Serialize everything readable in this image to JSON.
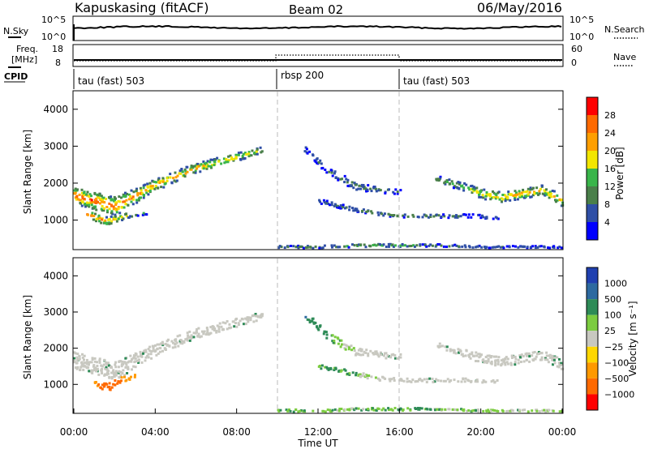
{
  "header": {
    "radar": "Kapuskasing (fitACF)",
    "beam": "Beam 02",
    "date": "06/May/2016"
  },
  "noise_panel": {
    "left_label": "N.Sky",
    "left_ticks": [
      "10^5",
      "10^0"
    ],
    "right_label": "N.Search",
    "right_ticks": [
      "10^5",
      "10^0"
    ]
  },
  "freq_panel": {
    "left_label_1": "Freq.",
    "left_label_2": "[MHz]",
    "left_ticks": [
      "18",
      "8"
    ],
    "right_label": "Nave",
    "right_ticks": [
      "60",
      "0"
    ]
  },
  "cpid_panel": {
    "label": "CPID",
    "segments": [
      {
        "start": 0,
        "end": 10,
        "name": "tau (fast) 503"
      },
      {
        "start": 10,
        "end": 16,
        "name": "rbsp 200"
      },
      {
        "start": 16,
        "end": 24,
        "name": "tau (fast) 503"
      }
    ]
  },
  "x_axis": {
    "label": "Time UT",
    "ticks": [
      "00:00",
      "04:00",
      "08:00",
      "12:00",
      "16:00",
      "20:00",
      "00:00"
    ]
  },
  "colors": {
    "power": [
      "#0000ff",
      "#2f4fa6",
      "#4a7f4a",
      "#39b54a",
      "#f2e600",
      "#ff9f00",
      "#ff6a00",
      "#ff0000"
    ],
    "velocity": [
      "#2040b0",
      "#2d6aa0",
      "#2e8b57",
      "#7ccc40",
      "#c8c8c0",
      "#ffd700",
      "#ff9900",
      "#ff6a00",
      "#ff0000"
    ],
    "ground_scatter": "#c8c8c0"
  },
  "chart_data": [
    {
      "type": "heatmap",
      "title": "Power",
      "ylabel": "Slant Range [km]",
      "xlim": [
        0,
        24
      ],
      "ylim": [
        200,
        4500
      ],
      "yticks": [
        "1000",
        "2000",
        "3000",
        "4000"
      ],
      "yvalues": [
        1000,
        2000,
        3000,
        4000
      ],
      "colorbar": {
        "label": "Power [dB]",
        "ticks": [
          "4",
          "8",
          "12",
          "16",
          "20",
          "24",
          "28"
        ],
        "range": [
          0,
          32
        ]
      },
      "bands": [
        {
          "x": [
            0,
            2,
            4,
            6,
            8,
            9.3
          ],
          "center": [
            1650,
            1350,
            1950,
            2400,
            2700,
            2900
          ],
          "width": [
            450,
            500,
            300,
            260,
            230,
            180
          ],
          "peak": [
            28,
            26,
            22,
            22,
            20,
            14
          ]
        },
        {
          "x": [
            0.6,
            1.6,
            2.8,
            3.6
          ],
          "center": [
            1150,
            950,
            1150,
            1200
          ],
          "width": [
            180,
            220,
            150,
            120
          ],
          "peak": [
            28,
            24,
            16,
            12
          ]
        },
        {
          "x": [
            10,
            12,
            14,
            16,
            18,
            20,
            22,
            24
          ],
          "center": [
            260,
            260,
            300,
            300,
            300,
            260,
            260,
            260
          ],
          "width": [
            60,
            70,
            80,
            80,
            60,
            60,
            50,
            50
          ],
          "peak": [
            10,
            12,
            16,
            14,
            10,
            8,
            8,
            8
          ]
        },
        {
          "x": [
            11.3,
            12.5,
            13.8,
            15,
            16
          ],
          "center": [
            2900,
            2300,
            1900,
            1800,
            1750
          ],
          "width": [
            160,
            200,
            200,
            160,
            140
          ],
          "peak": [
            8,
            10,
            12,
            10,
            8
          ]
        },
        {
          "x": [
            12,
            13.5,
            15,
            16.5,
            18,
            19.5,
            20.8
          ],
          "center": [
            1500,
            1300,
            1150,
            1100,
            1100,
            1100,
            1050
          ],
          "width": [
            120,
            120,
            110,
            100,
            100,
            100,
            90
          ],
          "peak": [
            8,
            10,
            12,
            12,
            10,
            8,
            6
          ]
        },
        {
          "x": [
            17.8,
            19,
            20,
            21,
            22,
            23,
            24
          ],
          "center": [
            2100,
            1900,
            1700,
            1600,
            1700,
            1800,
            1500
          ],
          "width": [
            160,
            220,
            260,
            260,
            260,
            260,
            300
          ],
          "peak": [
            12,
            16,
            20,
            22,
            24,
            22,
            22
          ]
        }
      ]
    },
    {
      "type": "heatmap",
      "title": "Velocity",
      "ylabel": "Slant Range [km]",
      "xlim": [
        0,
        24
      ],
      "ylim": [
        200,
        4500
      ],
      "yticks": [
        "1000",
        "2000",
        "3000",
        "4000"
      ],
      "yvalues": [
        1000,
        2000,
        3000,
        4000
      ],
      "colorbar": {
        "label": "Velocity [m s⁻¹]",
        "ticks": [
          "1000",
          "500",
          "100",
          "25",
          "−25",
          "−100",
          "−500",
          "−1000"
        ]
      },
      "bands": [
        {
          "x": [
            0,
            2,
            4,
            6,
            8,
            9.3
          ],
          "center": [
            1650,
            1350,
            1950,
            2400,
            2700,
            2900
          ],
          "width": [
            450,
            500,
            300,
            260,
            230,
            180
          ],
          "velocity": [
            0,
            0,
            0,
            0,
            0,
            0
          ]
        },
        {
          "x": [
            1,
            1.6,
            2.4,
            3
          ],
          "center": [
            1050,
            900,
            1150,
            1200
          ],
          "width": [
            200,
            220,
            150,
            120
          ],
          "velocity": [
            -300,
            -400,
            -300,
            -150
          ]
        },
        {
          "x": [
            10,
            12,
            14,
            16,
            18,
            20,
            22,
            24
          ],
          "center": [
            260,
            260,
            300,
            300,
            300,
            260,
            260,
            260
          ],
          "width": [
            60,
            70,
            80,
            80,
            60,
            60,
            50,
            50
          ],
          "velocity": [
            50,
            60,
            40,
            60,
            40,
            40,
            30,
            30
          ]
        },
        {
          "x": [
            11.3,
            12.5,
            13.8,
            15,
            16
          ],
          "center": [
            2900,
            2300,
            1900,
            1800,
            1750
          ],
          "width": [
            160,
            200,
            200,
            160,
            140
          ],
          "velocity": [
            300,
            80,
            0,
            0,
            0
          ]
        },
        {
          "x": [
            12,
            13.5,
            15,
            16.5,
            18,
            19.5,
            20.8
          ],
          "center": [
            1500,
            1300,
            1150,
            1100,
            1100,
            1100,
            1050
          ],
          "width": [
            120,
            120,
            110,
            100,
            100,
            100,
            90
          ],
          "velocity": [
            80,
            60,
            0,
            0,
            0,
            0,
            0
          ]
        },
        {
          "x": [
            17.8,
            19,
            20,
            21,
            22,
            23,
            24
          ],
          "center": [
            2100,
            1900,
            1700,
            1600,
            1700,
            1800,
            1500
          ],
          "width": [
            160,
            220,
            260,
            260,
            260,
            260,
            300
          ],
          "velocity": [
            0,
            0,
            0,
            0,
            0,
            0,
            0
          ]
        }
      ]
    }
  ]
}
